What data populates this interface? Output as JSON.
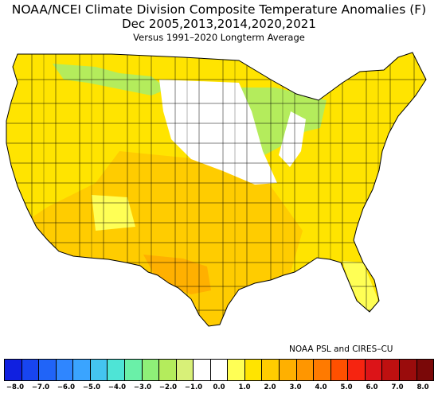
{
  "header": {
    "line1": "NOAA/NCEI Climate Division Composite Temperature Anomalies (F)",
    "line2": "Dec   2005,2013,2014,2020,2021",
    "line3": "Versus 1991–2020 Longterm Average"
  },
  "credit": "NOAA PSL and CIRES–CU",
  "legend": {
    "colors": [
      "#1020e0",
      "#1845f0",
      "#2064f8",
      "#2f86ff",
      "#3aa4ff",
      "#44c4f0",
      "#4ee4d6",
      "#6af0a8",
      "#8ef078",
      "#b4ec5c",
      "#d8f078",
      "#ffffff",
      "#ffffff",
      "#ffff55",
      "#ffe400",
      "#ffcc00",
      "#ffb000",
      "#ff9600",
      "#ff7a00",
      "#ff5000",
      "#f62410",
      "#dc1418",
      "#be1010",
      "#9a0c0c",
      "#7a0808"
    ],
    "labels": [
      "−8.0",
      "−7.0",
      "−6.0",
      "−5.0",
      "−4.0",
      "−3.0",
      "−2.0",
      "−1.0",
      "0.0",
      "1.0",
      "2.0",
      "3.0",
      "4.0",
      "5.0",
      "6.0",
      "7.0",
      "8.0"
    ]
  },
  "map": {
    "regions": [
      {
        "name": "west",
        "color": "#ffe400"
      },
      {
        "name": "southwest",
        "color": "#ffcc00"
      },
      {
        "name": "texas",
        "color": "#ffb000"
      },
      {
        "name": "upper-midwest",
        "color": "#b4ec5c"
      },
      {
        "name": "northern-plains",
        "color": "#ffffff"
      },
      {
        "name": "east",
        "color": "#ffe400"
      },
      {
        "name": "florida",
        "color": "#ffff55"
      }
    ]
  }
}
